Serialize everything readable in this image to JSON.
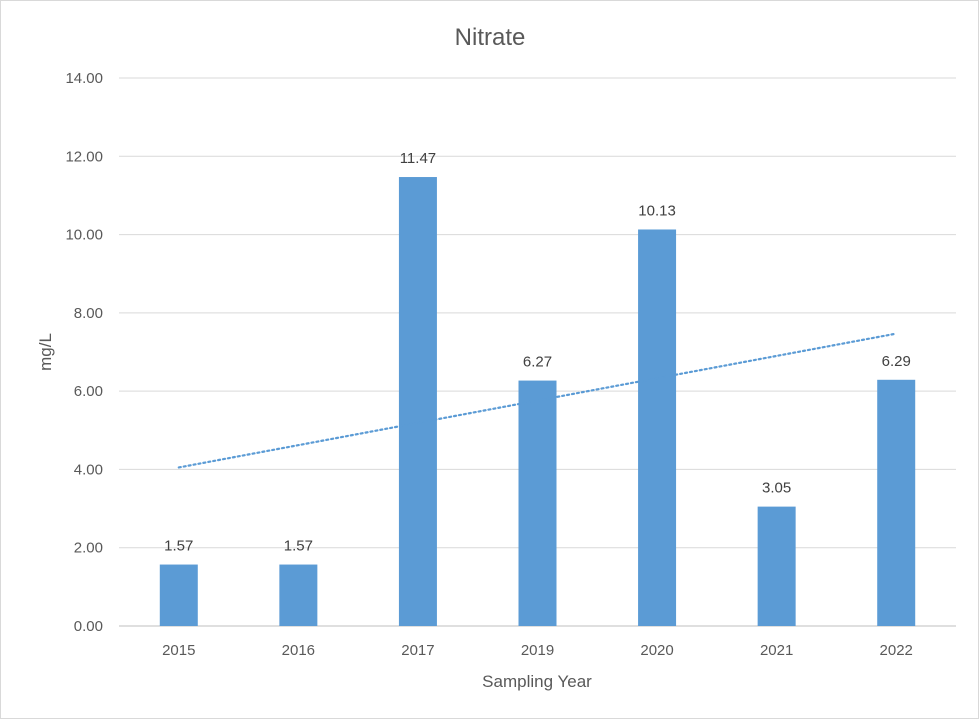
{
  "chart_data": {
    "type": "bar",
    "title": "Nitrate",
    "xlabel": "Sampling Year",
    "ylabel": "mg/L",
    "categories": [
      "2015",
      "2016",
      "2017",
      "2019",
      "2020",
      "2021",
      "2022"
    ],
    "values": [
      1.57,
      1.57,
      11.47,
      6.27,
      10.13,
      3.05,
      6.29
    ],
    "data_labels": [
      "1.57",
      "1.57",
      "11.47",
      "6.27",
      "10.13",
      "3.05",
      "6.29"
    ],
    "ylim": [
      0,
      14
    ],
    "yticks": [
      "0.00",
      "2.00",
      "4.00",
      "6.00",
      "8.00",
      "10.00",
      "12.00",
      "14.00"
    ],
    "grid": true,
    "legend": "none",
    "trendline": {
      "type": "linear",
      "style": "dotted",
      "start": 4.05,
      "end": 7.47
    },
    "colors": {
      "bar": "#5b9bd5",
      "trendline": "#5b9bd5",
      "grid": "#d9d9d9",
      "text": "#595959"
    }
  }
}
